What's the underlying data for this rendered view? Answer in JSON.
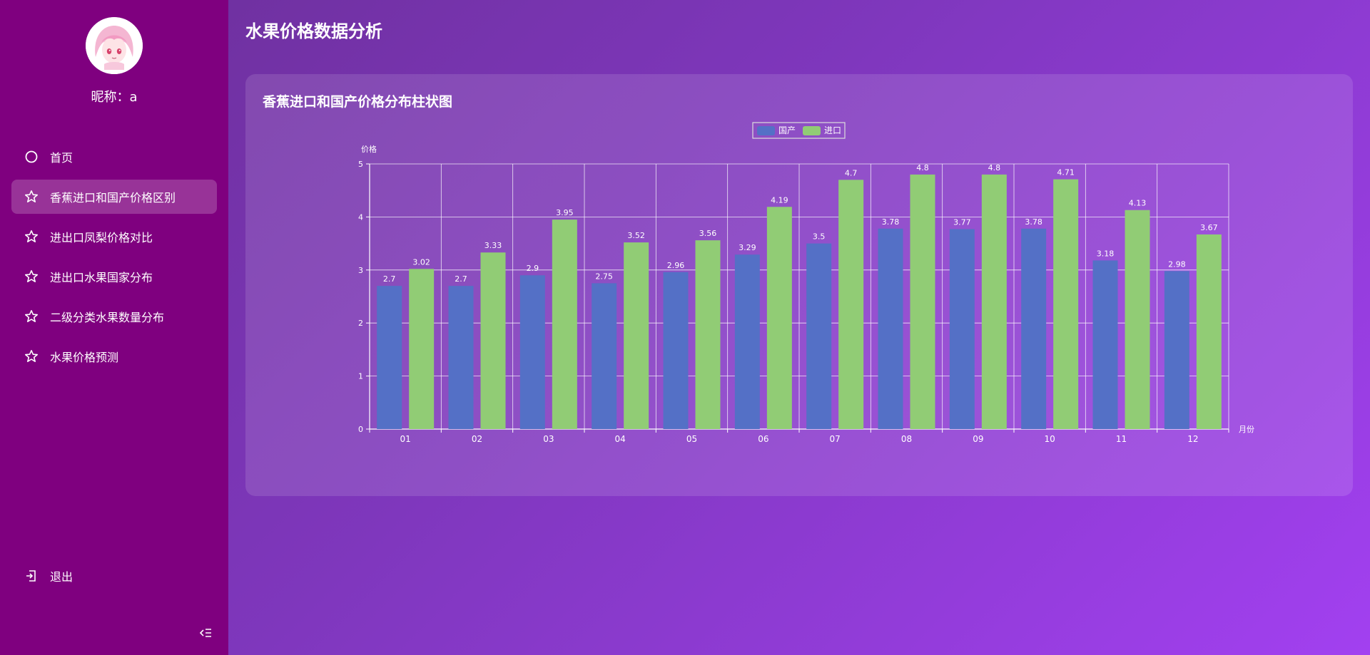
{
  "sidebar": {
    "nickname": "昵称：a",
    "items": [
      {
        "label": "首页",
        "icon": "circle-icon"
      },
      {
        "label": "香蕉进口和国产价格区别",
        "icon": "star-icon",
        "active": true
      },
      {
        "label": "进出口凤梨价格对比",
        "icon": "star-icon"
      },
      {
        "label": "进出口水果国家分布",
        "icon": "star-icon"
      },
      {
        "label": "二级分类水果数量分布",
        "icon": "star-icon"
      },
      {
        "label": "水果价格预测",
        "icon": "star-icon"
      }
    ],
    "logout_label": "退出",
    "background": "#7f007f"
  },
  "header": {
    "title": "水果价格数据分析"
  },
  "card": {
    "title": "香蕉进口和国产价格分布柱状图"
  },
  "chart_data": {
    "type": "bar",
    "title": "香蕉进口和国产价格分布柱状图",
    "xlabel": "月份",
    "ylabel": "价格",
    "categories": [
      "01",
      "02",
      "03",
      "04",
      "05",
      "06",
      "07",
      "08",
      "09",
      "10",
      "11",
      "12"
    ],
    "series": [
      {
        "name": "国产",
        "color": "#5470c6",
        "values": [
          2.7,
          2.7,
          2.9,
          2.75,
          2.96,
          3.29,
          3.5,
          3.78,
          3.77,
          3.78,
          3.18,
          2.98
        ]
      },
      {
        "name": "进口",
        "color": "#91cc75",
        "values": [
          3.02,
          3.33,
          3.95,
          3.52,
          3.56,
          4.19,
          4.7,
          4.8,
          4.8,
          4.71,
          4.13,
          3.67
        ]
      }
    ],
    "ylim": [
      0,
      5
    ],
    "yticks": [
      0,
      1,
      2,
      3,
      4,
      5
    ],
    "grid": true,
    "legend_position": "top-center",
    "data_labels": true
  }
}
